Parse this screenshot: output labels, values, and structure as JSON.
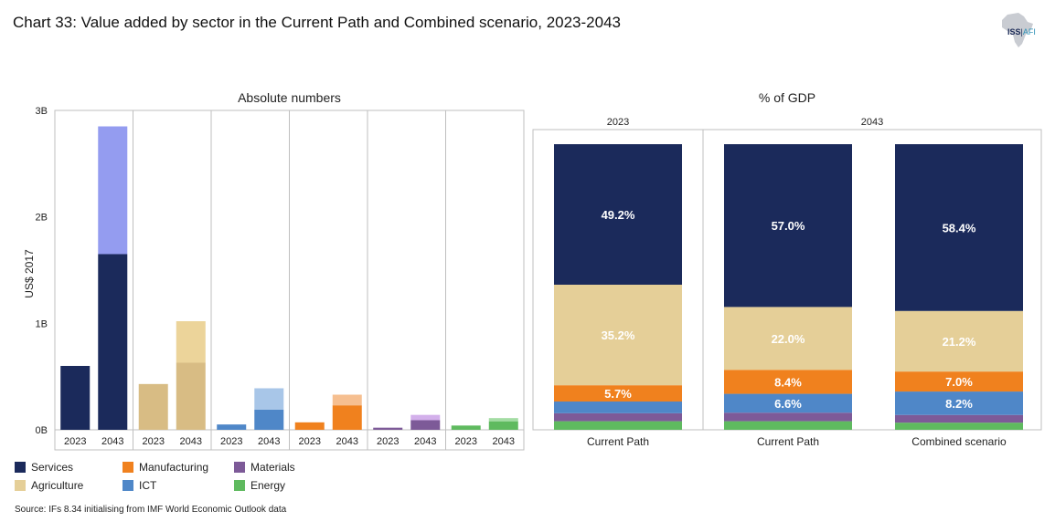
{
  "title": "Chart 33: Value added by sector in the Current Path and Combined scenario, 2023-2043",
  "logo": {
    "brand": "ISS",
    "suffix": "AFI"
  },
  "source": "Source: IFs 8.34 initialising from IMF World Economic Outlook data",
  "colors": {
    "Services": "#1b2a5b",
    "Services_light": "#949cf0",
    "Agriculture": "#d8bc84",
    "Agriculture_light": "#ecd49a",
    "ICT": "#4f87c8",
    "ICT_light": "#a8c6e8",
    "Manufacturing": "#f0811e",
    "Manufacturing_light": "#f6bf90",
    "Materials": "#7d5a98",
    "Materials_light": "#d3b0eb",
    "Energy": "#5fba5f",
    "Energy_light": "#a3dca3",
    "Agriculture_pct": "#e5cf98"
  },
  "legend": [
    {
      "label": "Services",
      "color": "#1b2a5b"
    },
    {
      "label": "Manufacturing",
      "color": "#f0811e"
    },
    {
      "label": "Materials",
      "color": "#7d5a98"
    },
    {
      "label": "Agriculture",
      "color": "#e5cf98"
    },
    {
      "label": "ICT",
      "color": "#4f87c8"
    },
    {
      "label": "Energy",
      "color": "#5fba5f"
    }
  ],
  "chart_data": [
    {
      "type": "bar",
      "title": "Absolute numbers",
      "ylabel": "US$ 2017",
      "ylim": [
        0,
        3
      ],
      "yticks": [
        0,
        1,
        2,
        3
      ],
      "ytick_labels": [
        "0B",
        "1B",
        "2B",
        "3B"
      ],
      "groups": [
        {
          "sector": "Services",
          "bars": [
            {
              "year": "2023",
              "current_path": 0.6,
              "combined_extra": 0
            },
            {
              "year": "2043",
              "current_path": 1.65,
              "combined_extra": 1.2
            }
          ]
        },
        {
          "sector": "Agriculture",
          "bars": [
            {
              "year": "2023",
              "current_path": 0.43,
              "combined_extra": 0
            },
            {
              "year": "2043",
              "current_path": 0.63,
              "combined_extra": 0.39
            }
          ]
        },
        {
          "sector": "ICT",
          "bars": [
            {
              "year": "2023",
              "current_path": 0.05,
              "combined_extra": 0
            },
            {
              "year": "2043",
              "current_path": 0.19,
              "combined_extra": 0.2
            }
          ]
        },
        {
          "sector": "Manufacturing",
          "bars": [
            {
              "year": "2023",
              "current_path": 0.07,
              "combined_extra": 0
            },
            {
              "year": "2043",
              "current_path": 0.23,
              "combined_extra": 0.1
            }
          ]
        },
        {
          "sector": "Materials",
          "bars": [
            {
              "year": "2023",
              "current_path": 0.02,
              "combined_extra": 0
            },
            {
              "year": "2043",
              "current_path": 0.09,
              "combined_extra": 0.05
            }
          ]
        },
        {
          "sector": "Energy",
          "bars": [
            {
              "year": "2023",
              "current_path": 0.04,
              "combined_extra": 0
            },
            {
              "year": "2043",
              "current_path": 0.08,
              "combined_extra": 0.03
            }
          ]
        }
      ]
    },
    {
      "type": "stacked_bar",
      "title": "% of GDP",
      "ylim": [
        0,
        100
      ],
      "panels": [
        {
          "label": "2023",
          "bars": [
            "Current Path"
          ]
        },
        {
          "label": "2043",
          "bars": [
            "Current Path",
            "Combined scenario"
          ]
        }
      ],
      "stack_order": [
        "Energy",
        "Materials",
        "ICT",
        "Manufacturing",
        "Agriculture",
        "Services"
      ],
      "bars": [
        {
          "name": "Current Path",
          "panel": "2023",
          "values": {
            "Energy": 3.0,
            "Materials": 2.8,
            "ICT": 4.1,
            "Manufacturing": 5.7,
            "Agriculture": 35.2,
            "Services": 49.2
          }
        },
        {
          "name": "Current Path",
          "panel": "2043",
          "values": {
            "Energy": 3.0,
            "Materials": 3.0,
            "ICT": 6.6,
            "Manufacturing": 8.4,
            "Agriculture": 22.0,
            "Services": 57.0
          }
        },
        {
          "name": "Combined scenario",
          "panel": "2043",
          "values": {
            "Energy": 2.5,
            "Materials": 2.7,
            "ICT": 8.2,
            "Manufacturing": 7.0,
            "Agriculture": 21.2,
            "Services": 58.4
          }
        }
      ],
      "labeled_sectors": [
        "Services",
        "Agriculture",
        "Manufacturing",
        "ICT"
      ],
      "data_labels": [
        {
          "bar": 0,
          "labels": {
            "Services": "49.2%",
            "Agriculture": "35.2%",
            "Manufacturing": "5.7%"
          }
        },
        {
          "bar": 1,
          "labels": {
            "Services": "57.0%",
            "Agriculture": "22.0%",
            "Manufacturing": "8.4%",
            "ICT": "6.6%"
          }
        },
        {
          "bar": 2,
          "labels": {
            "Services": "58.4%",
            "Agriculture": "21.2%",
            "Manufacturing": "7.0%",
            "ICT": "8.2%"
          }
        }
      ]
    }
  ]
}
